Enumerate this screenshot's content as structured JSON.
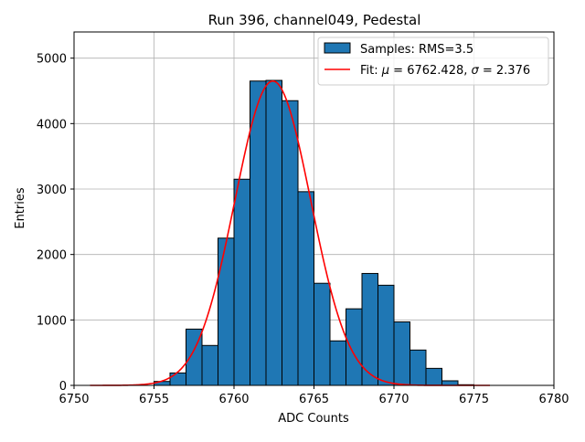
{
  "chart_data": {
    "type": "bar",
    "title": "Run 396, channel049, Pedestal",
    "xlabel": "ADC Counts",
    "ylabel": "Entries",
    "xlim": [
      6750,
      6780
    ],
    "ylim": [
      0,
      5400
    ],
    "xticks": [
      6750,
      6755,
      6760,
      6765,
      6770,
      6775,
      6780
    ],
    "yticks": [
      0,
      1000,
      2000,
      3000,
      4000,
      5000
    ],
    "grid": true,
    "bin_width": 1,
    "bins": [
      {
        "x0": 6755,
        "value": 60
      },
      {
        "x0": 6756,
        "value": 190
      },
      {
        "x0": 6757,
        "value": 860
      },
      {
        "x0": 6758,
        "value": 610
      },
      {
        "x0": 6759,
        "value": 2250
      },
      {
        "x0": 6760,
        "value": 3150
      },
      {
        "x0": 6761,
        "value": 4650
      },
      {
        "x0": 6762,
        "value": 4660
      },
      {
        "x0": 6763,
        "value": 4350
      },
      {
        "x0": 6764,
        "value": 2960
      },
      {
        "x0": 6765,
        "value": 1560
      },
      {
        "x0": 6766,
        "value": 680
      },
      {
        "x0": 6767,
        "value": 1170
      },
      {
        "x0": 6768,
        "value": 1710
      },
      {
        "x0": 6769,
        "value": 1530
      },
      {
        "x0": 6770,
        "value": 970
      },
      {
        "x0": 6771,
        "value": 540
      },
      {
        "x0": 6772,
        "value": 260
      },
      {
        "x0": 6773,
        "value": 70
      },
      {
        "x0": 6774,
        "value": 10
      }
    ],
    "fit": {
      "mu": 6762.428,
      "sigma": 2.376,
      "amplitude": 4650,
      "x_range": [
        6751,
        6776
      ]
    },
    "legend": {
      "placement": "top-right",
      "entries": [
        {
          "label": "Samples: RMS=3.5",
          "kind": "patch"
        },
        {
          "label_prefix": "Fit: ",
          "mu_symbol": "μ",
          "mu_text": " = 6762.428, ",
          "sigma_symbol": "σ",
          "sigma_text": " = 2.376",
          "kind": "line"
        }
      ]
    },
    "colors": {
      "bar_fill": "#1f77b4",
      "bar_edge": "#000000",
      "fit_line": "#ff0000",
      "grid": "#b0b0b0",
      "legend_border": "#cccccc"
    }
  }
}
